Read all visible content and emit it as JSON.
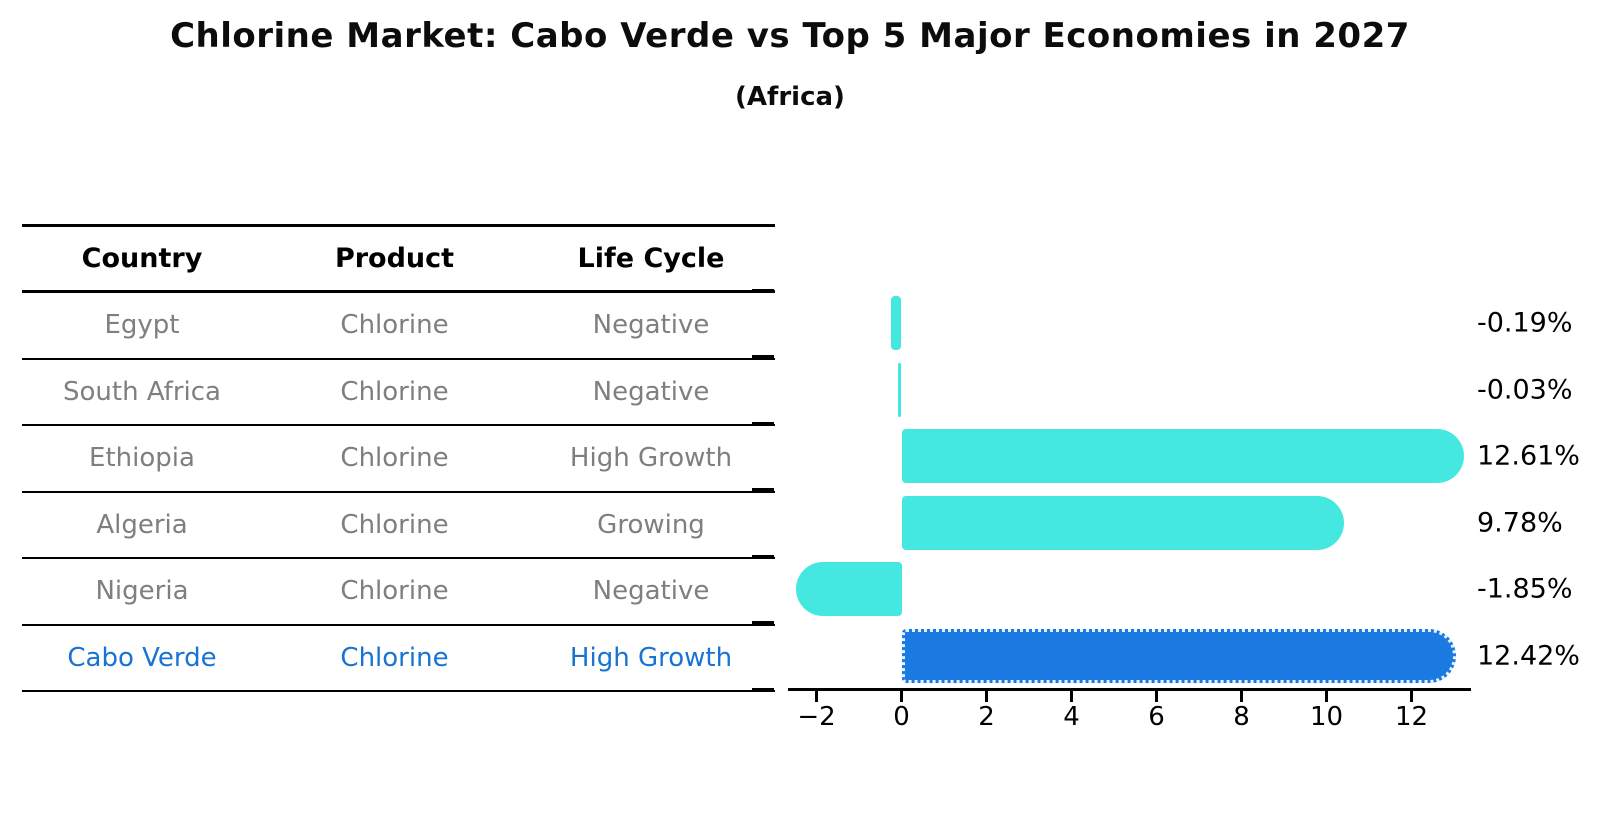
{
  "title": "Chlorine Market: Cabo Verde vs Top 5 Major Economies in 2027",
  "subtitle": "(Africa)",
  "table": {
    "headers": {
      "country": "Country",
      "product": "Product",
      "life_cycle": "Life Cycle"
    },
    "rows": [
      {
        "country": "Egypt",
        "product": "Chlorine",
        "life_cycle": "Negative",
        "highlighted": false
      },
      {
        "country": "South Africa",
        "product": "Chlorine",
        "life_cycle": "Negative",
        "highlighted": false
      },
      {
        "country": "Ethiopia",
        "product": "Chlorine",
        "life_cycle": "High Growth",
        "highlighted": false
      },
      {
        "country": "Algeria",
        "product": "Chlorine",
        "life_cycle": "Growing",
        "highlighted": false
      },
      {
        "country": "Nigeria",
        "product": "Chlorine",
        "life_cycle": "Negative",
        "highlighted": false
      },
      {
        "country": "Cabo Verde",
        "product": "Chlorine",
        "life_cycle": "High Growth",
        "highlighted": true
      }
    ]
  },
  "chart_data": {
    "type": "bar",
    "orientation": "horizontal",
    "categories": [
      "Egypt",
      "South Africa",
      "Ethiopia",
      "Algeria",
      "Nigeria",
      "Cabo Verde"
    ],
    "values": [
      -0.19,
      -0.03,
      12.61,
      9.78,
      -1.85,
      12.42
    ],
    "value_labels": [
      "-0.19%",
      "-0.03%",
      "12.61%",
      "9.78%",
      "-1.85%",
      "12.42%"
    ],
    "xticks": [
      -2,
      0,
      2,
      4,
      6,
      8,
      10,
      12
    ],
    "xtick_labels": [
      "−2",
      "0",
      "2",
      "4",
      "6",
      "8",
      "10",
      "12"
    ],
    "xlim": [
      -2.7,
      13.4
    ],
    "grid": false,
    "legend": "none",
    "bar_color": "#45e8e0",
    "highlight_color": "#1b7ae1",
    "highlight_index": 5,
    "highlight_text_color": "#1874d2"
  }
}
